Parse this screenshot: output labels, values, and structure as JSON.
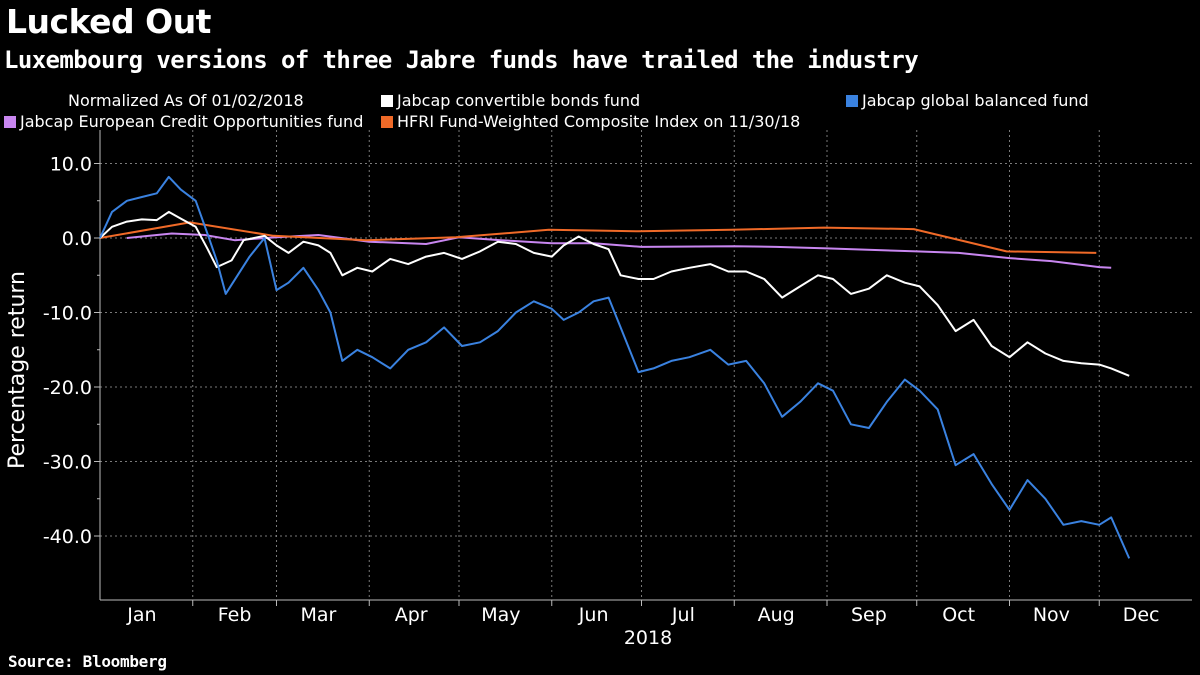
{
  "header": {
    "title": "Lucked Out",
    "subtitle": "Luxembourg versions of three Jabre funds have trailed the industry"
  },
  "legend": {
    "note": "Normalized As Of 01/02/2018",
    "items": [
      {
        "label": "Jabcap convertible bonds fund",
        "color": "#ffffff"
      },
      {
        "label": "Jabcap global balanced fund",
        "color": "#3a82e0"
      },
      {
        "label": "Jabcap European Credit Opportunities fund",
        "color": "#c886f0"
      },
      {
        "label": "HFRI Fund-Weighted Composite Index on 11/30/18",
        "color": "#f06a28"
      }
    ]
  },
  "footer": {
    "source": "Source: Bloomberg"
  },
  "chart_data": {
    "type": "line",
    "ylabel": "Percentage return",
    "xlabel": "2018",
    "ylim": [
      -45,
      13
    ],
    "yticks": [
      10,
      0,
      -10,
      -20,
      -30,
      -40
    ],
    "ytick_labels": [
      "10.0",
      "0.0",
      "-10.0",
      "-20.0",
      "-30.0",
      "-40.0"
    ],
    "months": [
      "Jan",
      "Feb",
      "Mar",
      "Apr",
      "May",
      "Jun",
      "Jul",
      "Aug",
      "Sep",
      "Oct",
      "Nov",
      "Dec"
    ],
    "grid": true,
    "series": [
      {
        "name": "Jabcap European Credit Opportunities fund",
        "color": "#c886f0",
        "points": [
          [
            "2018-01-10",
            0
          ],
          [
            "2018-01-25",
            0.6
          ],
          [
            "2018-02-05",
            0.4
          ],
          [
            "2018-02-15",
            -0.3
          ],
          [
            "2018-03-01",
            0.1
          ],
          [
            "2018-03-15",
            0.4
          ],
          [
            "2018-04-01",
            -0.5
          ],
          [
            "2018-04-20",
            -0.8
          ],
          [
            "2018-05-01",
            0.1
          ],
          [
            "2018-05-15",
            -0.3
          ],
          [
            "2018-06-01",
            -0.7
          ],
          [
            "2018-06-15",
            -0.7
          ],
          [
            "2018-07-01",
            -1.2
          ],
          [
            "2018-08-01",
            -1.1
          ],
          [
            "2018-08-15",
            -1.2
          ],
          [
            "2018-09-01",
            -1.4
          ],
          [
            "2018-10-01",
            -1.8
          ],
          [
            "2018-10-15",
            -2.0
          ],
          [
            "2018-11-01",
            -2.7
          ],
          [
            "2018-11-15",
            -3.1
          ],
          [
            "2018-12-01",
            -3.9
          ],
          [
            "2018-12-05",
            -4.0
          ]
        ]
      },
      {
        "name": "HFRI Fund-Weighted Composite Index on 11/30/18",
        "color": "#f06a28",
        "points": [
          [
            "2018-01-01",
            0
          ],
          [
            "2018-01-31",
            2.1
          ],
          [
            "2018-02-28",
            0.3
          ],
          [
            "2018-03-31",
            -0.3
          ],
          [
            "2018-04-30",
            0.1
          ],
          [
            "2018-05-31",
            1.1
          ],
          [
            "2018-06-30",
            0.9
          ],
          [
            "2018-07-31",
            1.1
          ],
          [
            "2018-08-31",
            1.4
          ],
          [
            "2018-09-30",
            1.2
          ],
          [
            "2018-10-31",
            -1.8
          ],
          [
            "2018-11-30",
            -2.0
          ]
        ]
      },
      {
        "name": "Jabcap convertible bonds fund",
        "color": "#ffffff",
        "points": [
          [
            "2018-01-01",
            0
          ],
          [
            "2018-01-05",
            1.5
          ],
          [
            "2018-01-10",
            2.2
          ],
          [
            "2018-01-15",
            2.5
          ],
          [
            "2018-01-20",
            2.4
          ],
          [
            "2018-01-24",
            3.5
          ],
          [
            "2018-01-28",
            2.6
          ],
          [
            "2018-02-02",
            1.5
          ],
          [
            "2018-02-06",
            -1.5
          ],
          [
            "2018-02-09",
            -3.9
          ],
          [
            "2018-02-14",
            -3.0
          ],
          [
            "2018-02-18",
            -0.3
          ],
          [
            "2018-02-25",
            0.3
          ],
          [
            "2018-03-01",
            -1.0
          ],
          [
            "2018-03-05",
            -2.0
          ],
          [
            "2018-03-10",
            -0.5
          ],
          [
            "2018-03-15",
            -1.0
          ],
          [
            "2018-03-19",
            -2.0
          ],
          [
            "2018-03-23",
            -5.0
          ],
          [
            "2018-03-28",
            -4.0
          ],
          [
            "2018-04-02",
            -4.5
          ],
          [
            "2018-04-08",
            -2.8
          ],
          [
            "2018-04-14",
            -3.5
          ],
          [
            "2018-04-20",
            -2.5
          ],
          [
            "2018-04-26",
            -2.0
          ],
          [
            "2018-05-02",
            -2.8
          ],
          [
            "2018-05-08",
            -1.8
          ],
          [
            "2018-05-14",
            -0.5
          ],
          [
            "2018-05-20",
            -0.8
          ],
          [
            "2018-05-26",
            -2.0
          ],
          [
            "2018-06-01",
            -2.5
          ],
          [
            "2018-06-05",
            -1.0
          ],
          [
            "2018-06-10",
            0.2
          ],
          [
            "2018-06-15",
            -0.8
          ],
          [
            "2018-06-20",
            -1.5
          ],
          [
            "2018-06-24",
            -5.0
          ],
          [
            "2018-06-30",
            -5.5
          ],
          [
            "2018-07-05",
            -5.5
          ],
          [
            "2018-07-11",
            -4.5
          ],
          [
            "2018-07-17",
            -4.0
          ],
          [
            "2018-07-24",
            -3.5
          ],
          [
            "2018-07-30",
            -4.5
          ],
          [
            "2018-08-05",
            -4.5
          ],
          [
            "2018-08-11",
            -5.5
          ],
          [
            "2018-08-17",
            -8.0
          ],
          [
            "2018-08-23",
            -6.5
          ],
          [
            "2018-08-29",
            -5.0
          ],
          [
            "2018-09-03",
            -5.5
          ],
          [
            "2018-09-09",
            -7.5
          ],
          [
            "2018-09-15",
            -6.8
          ],
          [
            "2018-09-21",
            -5.0
          ],
          [
            "2018-09-27",
            -6.0
          ],
          [
            "2018-10-02",
            -6.5
          ],
          [
            "2018-10-08",
            -9.0
          ],
          [
            "2018-10-14",
            -12.5
          ],
          [
            "2018-10-20",
            -11.0
          ],
          [
            "2018-10-26",
            -14.5
          ],
          [
            "2018-11-01",
            -16.0
          ],
          [
            "2018-11-07",
            -14.0
          ],
          [
            "2018-11-13",
            -15.5
          ],
          [
            "2018-11-19",
            -16.5
          ],
          [
            "2018-11-25",
            -16.8
          ],
          [
            "2018-12-01",
            -17.0
          ],
          [
            "2018-12-05",
            -17.5
          ],
          [
            "2018-12-11",
            -18.5
          ]
        ]
      },
      {
        "name": "Jabcap global balanced fund",
        "color": "#3a82e0",
        "points": [
          [
            "2018-01-01",
            0
          ],
          [
            "2018-01-05",
            3.5
          ],
          [
            "2018-01-10",
            5.0
          ],
          [
            "2018-01-15",
            5.5
          ],
          [
            "2018-01-20",
            6.0
          ],
          [
            "2018-01-24",
            8.2
          ],
          [
            "2018-01-28",
            6.5
          ],
          [
            "2018-02-02",
            5.0
          ],
          [
            "2018-02-06",
            0.5
          ],
          [
            "2018-02-09",
            -3.0
          ],
          [
            "2018-02-12",
            -7.5
          ],
          [
            "2018-02-16",
            -5.0
          ],
          [
            "2018-02-20",
            -2.5
          ],
          [
            "2018-02-25",
            0.0
          ],
          [
            "2018-03-01",
            -7.0
          ],
          [
            "2018-03-05",
            -6.0
          ],
          [
            "2018-03-10",
            -4.0
          ],
          [
            "2018-03-15",
            -7.0
          ],
          [
            "2018-03-19",
            -10.0
          ],
          [
            "2018-03-23",
            -16.5
          ],
          [
            "2018-03-28",
            -15.0
          ],
          [
            "2018-04-02",
            -16.0
          ],
          [
            "2018-04-08",
            -17.5
          ],
          [
            "2018-04-14",
            -15.0
          ],
          [
            "2018-04-20",
            -14.0
          ],
          [
            "2018-04-26",
            -12.0
          ],
          [
            "2018-05-02",
            -14.5
          ],
          [
            "2018-05-08",
            -14.0
          ],
          [
            "2018-05-14",
            -12.5
          ],
          [
            "2018-05-20",
            -10.0
          ],
          [
            "2018-05-26",
            -8.5
          ],
          [
            "2018-06-01",
            -9.5
          ],
          [
            "2018-06-05",
            -11.0
          ],
          [
            "2018-06-10",
            -10.0
          ],
          [
            "2018-06-15",
            -8.5
          ],
          [
            "2018-06-20",
            -8.0
          ],
          [
            "2018-06-24",
            -12.0
          ],
          [
            "2018-06-30",
            -18.0
          ],
          [
            "2018-07-05",
            -17.5
          ],
          [
            "2018-07-11",
            -16.5
          ],
          [
            "2018-07-17",
            -16.0
          ],
          [
            "2018-07-24",
            -15.0
          ],
          [
            "2018-07-30",
            -17.0
          ],
          [
            "2018-08-05",
            -16.5
          ],
          [
            "2018-08-11",
            -19.5
          ],
          [
            "2018-08-17",
            -24.0
          ],
          [
            "2018-08-23",
            -22.0
          ],
          [
            "2018-08-29",
            -19.5
          ],
          [
            "2018-09-03",
            -20.5
          ],
          [
            "2018-09-09",
            -25.0
          ],
          [
            "2018-09-15",
            -25.5
          ],
          [
            "2018-09-21",
            -22.0
          ],
          [
            "2018-09-27",
            -19.0
          ],
          [
            "2018-10-02",
            -20.5
          ],
          [
            "2018-10-08",
            -23.0
          ],
          [
            "2018-10-14",
            -30.5
          ],
          [
            "2018-10-20",
            -29.0
          ],
          [
            "2018-10-26",
            -33.0
          ],
          [
            "2018-11-01",
            -36.5
          ],
          [
            "2018-11-07",
            -32.5
          ],
          [
            "2018-11-13",
            -35.0
          ],
          [
            "2018-11-19",
            -38.5
          ],
          [
            "2018-11-25",
            -38.0
          ],
          [
            "2018-12-01",
            -38.5
          ],
          [
            "2018-12-05",
            -37.5
          ],
          [
            "2018-12-11",
            -43.0
          ]
        ]
      }
    ]
  }
}
